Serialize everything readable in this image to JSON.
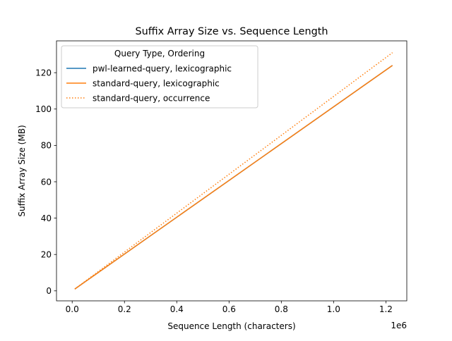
{
  "chart_data": {
    "type": "line",
    "title": "Suffix Array Size vs. Sequence Length",
    "xlabel": "Sequence Length (characters)",
    "ylabel": "Suffix Array Size (MB)",
    "x_scale_label": "1e6",
    "xlim": [
      -60000,
      1280000
    ],
    "ylim": [
      -5.5,
      137.5
    ],
    "xticks": [
      0,
      200000,
      400000,
      600000,
      800000,
      1000000,
      1200000
    ],
    "xtick_labels": [
      "0.0",
      "0.2",
      "0.4",
      "0.6",
      "0.8",
      "1.0",
      "1.2"
    ],
    "yticks": [
      0,
      20,
      40,
      60,
      80,
      100,
      120
    ],
    "ytick_labels": [
      "0",
      "20",
      "40",
      "60",
      "80",
      "100",
      "120"
    ],
    "grid": false,
    "legend": {
      "title": "Query Type, Ordering",
      "placement": "upper-left"
    },
    "series": [
      {
        "name": "pwl-learned-query, lexicographic",
        "color": "#1f77b4",
        "style": "solid",
        "x": [
          10000,
          1225000
        ],
        "y": [
          1.0,
          124.0
        ]
      },
      {
        "name": "standard-query, lexicographic",
        "color": "#ff7f0e",
        "style": "solid",
        "x": [
          10000,
          1225000
        ],
        "y": [
          1.0,
          124.0
        ]
      },
      {
        "name": "standard-query, occurrence",
        "color": "#ff7f0e",
        "style": "dotted",
        "x": [
          10000,
          1225000
        ],
        "y": [
          1.0,
          131.0
        ]
      }
    ]
  }
}
